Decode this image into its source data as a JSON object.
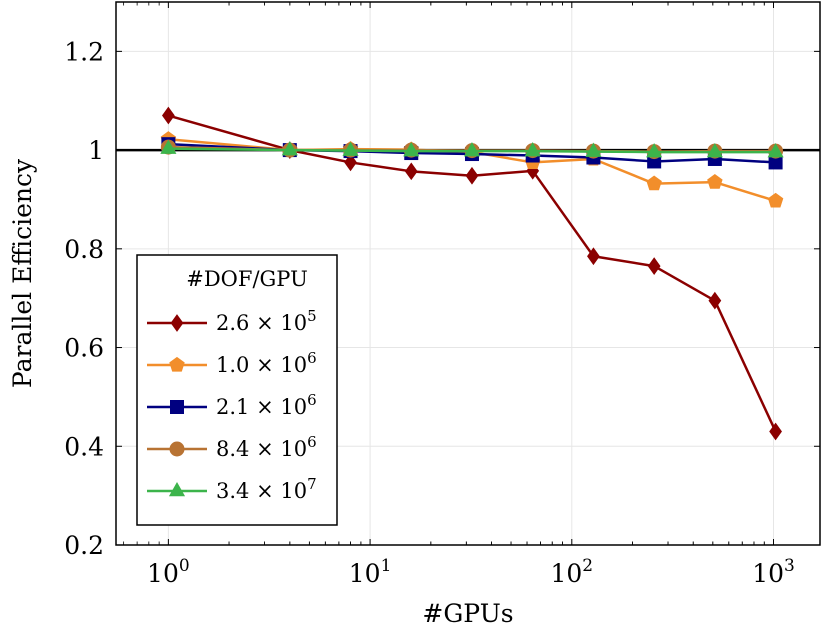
{
  "chart_data": {
    "type": "line",
    "xlabel": "#GPUs",
    "ylabel": "Parallel Efficiency",
    "x_scale": "log",
    "xlim": [
      0.55,
      1700
    ],
    "ylim": [
      0.2,
      1.3
    ],
    "x_ticks": [
      {
        "value": 1,
        "base": "10",
        "exp": "0"
      },
      {
        "value": 10,
        "base": "10",
        "exp": "1"
      },
      {
        "value": 100,
        "base": "10",
        "exp": "2"
      },
      {
        "value": 1000,
        "base": "10",
        "exp": "3"
      }
    ],
    "y_ticks": [
      {
        "value": 0.2,
        "label": "0.2"
      },
      {
        "value": 0.4,
        "label": "0.4"
      },
      {
        "value": 0.6,
        "label": "0.6"
      },
      {
        "value": 0.8,
        "label": "0.8"
      },
      {
        "value": 1.0,
        "label": "1"
      },
      {
        "value": 1.2,
        "label": "1.2"
      }
    ],
    "reference_line": 1.0,
    "grid": true,
    "legend": {
      "title": "#DOF/GPU",
      "placement": "bottom-left"
    },
    "x": [
      1,
      4,
      8,
      16,
      32,
      64,
      128,
      256,
      512,
      1024
    ],
    "series": [
      {
        "mantissa": "2.6",
        "exponent": "5",
        "color": "#8b0000",
        "marker": "diamond",
        "values": [
          1.07,
          1.0,
          0.975,
          0.957,
          0.948,
          0.958,
          0.785,
          0.765,
          0.695,
          0.43
        ]
      },
      {
        "mantissa": "1.0",
        "exponent": "6",
        "color": "#f28e2b",
        "marker": "pentagon",
        "values": [
          1.022,
          1.0,
          1.002,
          1.001,
          0.996,
          0.975,
          0.982,
          0.932,
          0.935,
          0.897
        ]
      },
      {
        "mantissa": "2.1",
        "exponent": "6",
        "color": "#000080",
        "marker": "square",
        "values": [
          1.012,
          1.0,
          0.998,
          0.994,
          0.992,
          0.989,
          0.985,
          0.977,
          0.982,
          0.975
        ]
      },
      {
        "mantissa": "8.4",
        "exponent": "6",
        "color": "#b87333",
        "marker": "circle",
        "values": [
          1.006,
          1.0,
          1.0,
          1.0,
          0.999,
          0.999,
          0.998,
          0.997,
          0.998,
          0.998
        ]
      },
      {
        "mantissa": "3.4",
        "exponent": "7",
        "color": "#3cb44b",
        "marker": "triangle",
        "values": [
          1.003,
          1.0,
          0.999,
          0.998,
          0.998,
          0.998,
          0.997,
          0.996,
          0.996,
          0.996
        ]
      }
    ]
  }
}
